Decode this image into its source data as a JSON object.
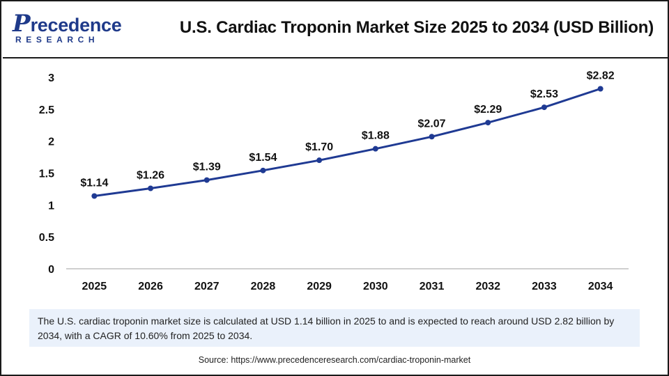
{
  "brand": {
    "logo_initial": "P",
    "logo_rest": "recedence",
    "logo_sub": "RESEARCH",
    "color": "#1f3a8a"
  },
  "summary_text": "The U.S. cardiac troponin market size is calculated at USD 1.14 billion in 2025 to and is expected to reach around USD 2.82 billion by 2034, with a CAGR of 10.60% from 2025 to 2034.",
  "source_text": "Source: https://www.precedenceresearch.com/cardiac-troponin-market",
  "chart_data": {
    "type": "line",
    "title": "U.S. Cardiac Troponin Market Size 2025 to 2034 (USD Billion)",
    "xlabel": "",
    "ylabel": "",
    "categories": [
      "2025",
      "2026",
      "2027",
      "2028",
      "2029",
      "2030",
      "2031",
      "2032",
      "2033",
      "2034"
    ],
    "series": [
      {
        "name": "Market Size",
        "values": [
          1.14,
          1.26,
          1.39,
          1.54,
          1.7,
          1.88,
          2.07,
          2.29,
          2.53,
          2.82
        ],
        "labels": [
          "$1.14",
          "$1.26",
          "$1.39",
          "$1.54",
          "$1.70",
          "$1.88",
          "$2.07",
          "$2.29",
          "$2.53",
          "$2.82"
        ],
        "color": "#1f3a93"
      }
    ],
    "ylim": [
      0,
      3
    ],
    "yticks": [
      0,
      0.5,
      1,
      1.5,
      2,
      2.5,
      3
    ],
    "ytick_labels": [
      "0",
      "0.5",
      "1",
      "1.5",
      "2",
      "2.5",
      "3"
    ],
    "grid": false,
    "legend": "none"
  }
}
